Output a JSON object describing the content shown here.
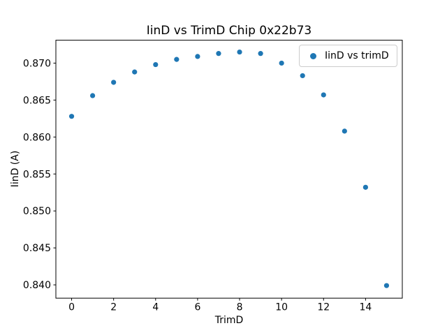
{
  "chart_data": {
    "type": "scatter",
    "title": "IinD vs TrimD Chip 0x22b73",
    "xlabel": "TrimD",
    "ylabel": "IinD (A)",
    "legend": {
      "position": "upper right",
      "entries": [
        "IinD vs trimD"
      ]
    },
    "x": [
      0,
      1,
      2,
      3,
      4,
      5,
      6,
      7,
      8,
      9,
      10,
      11,
      12,
      13,
      14,
      15
    ],
    "series": [
      {
        "name": "IinD vs trimD",
        "color": "#1f77b4",
        "y": [
          0.8628,
          0.8656,
          0.8674,
          0.8688,
          0.8698,
          0.8705,
          0.8709,
          0.8713,
          0.8715,
          0.8713,
          0.87,
          0.8683,
          0.8657,
          0.8608,
          0.8532,
          0.8399
        ]
      }
    ],
    "xlim": [
      -0.75,
      15.75
    ],
    "ylim": [
      0.8382,
      0.8731
    ],
    "xticks": [
      0,
      2,
      4,
      6,
      8,
      10,
      12,
      14
    ],
    "yticks": [
      0.84,
      0.845,
      0.85,
      0.855,
      0.86,
      0.865,
      0.87
    ],
    "ytick_decimals": 3,
    "grid": false,
    "marker": "circle",
    "background": "#ffffff",
    "spine_color": "#000000"
  }
}
